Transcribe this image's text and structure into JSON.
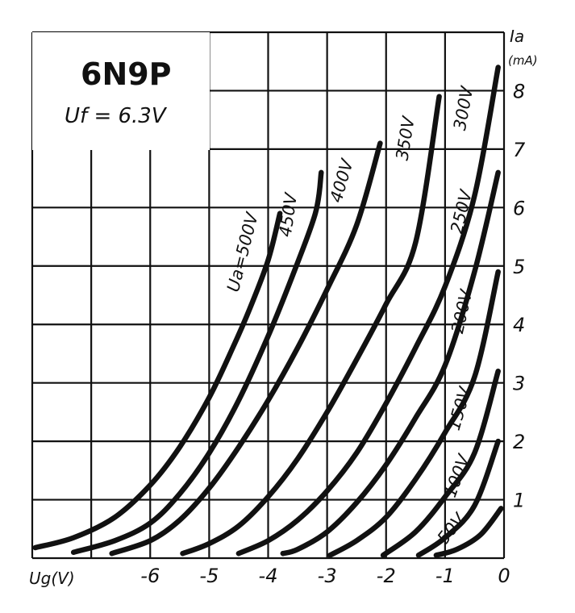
{
  "chart_data": {
    "type": "line",
    "title": "6N9P",
    "subtitle": "Uf = 6.3V",
    "xlabel": "Ug(V)",
    "ylabel": "Ia",
    "yunit": "(mA)",
    "xlim": [
      -8,
      0
    ],
    "ylim": [
      0,
      9
    ],
    "x_ticks": [
      -6,
      -5,
      -4,
      -3,
      -2,
      -1,
      0
    ],
    "y_ticks": [
      1,
      2,
      3,
      4,
      5,
      6,
      7,
      8
    ],
    "grid": true,
    "series": [
      {
        "name": "Ua=500V",
        "points": [
          [
            -7.95,
            0.18
          ],
          [
            -7.3,
            0.35
          ],
          [
            -6.6,
            0.7
          ],
          [
            -6,
            1.25
          ],
          [
            -5.5,
            1.9
          ],
          [
            -5,
            2.75
          ],
          [
            -4.6,
            3.6
          ],
          [
            -4.3,
            4.3
          ],
          [
            -4,
            5.1
          ],
          [
            -3.8,
            5.9
          ]
        ]
      },
      {
        "name": "450V",
        "points": [
          [
            -7.3,
            0.1
          ],
          [
            -6.6,
            0.3
          ],
          [
            -6,
            0.6
          ],
          [
            -5.5,
            1.1
          ],
          [
            -5,
            1.8
          ],
          [
            -4.5,
            2.7
          ],
          [
            -4,
            3.8
          ],
          [
            -3.6,
            4.8
          ],
          [
            -3.2,
            5.9
          ],
          [
            -3.1,
            6.6
          ]
        ]
      },
      {
        "name": "400V",
        "points": [
          [
            -6.65,
            0.08
          ],
          [
            -6,
            0.3
          ],
          [
            -5.5,
            0.65
          ],
          [
            -5,
            1.2
          ],
          [
            -4.5,
            1.9
          ],
          [
            -4,
            2.7
          ],
          [
            -3.5,
            3.6
          ],
          [
            -3,
            4.6
          ],
          [
            -2.5,
            5.7
          ],
          [
            -2.1,
            7.1
          ]
        ]
      },
      {
        "name": "350V",
        "points": [
          [
            -5.45,
            0.08
          ],
          [
            -5,
            0.25
          ],
          [
            -4.5,
            0.55
          ],
          [
            -4,
            1.05
          ],
          [
            -3.5,
            1.7
          ],
          [
            -3,
            2.5
          ],
          [
            -2.5,
            3.4
          ],
          [
            -2,
            4.35
          ],
          [
            -1.5,
            5.4
          ],
          [
            -1.1,
            7.9
          ]
        ]
      },
      {
        "name": "300V",
        "points": [
          [
            -4.5,
            0.08
          ],
          [
            -4,
            0.3
          ],
          [
            -3.5,
            0.65
          ],
          [
            -3,
            1.15
          ],
          [
            -2.5,
            1.8
          ],
          [
            -2,
            2.65
          ],
          [
            -1.5,
            3.6
          ],
          [
            -1,
            4.65
          ],
          [
            -0.5,
            6.2
          ],
          [
            -0.1,
            8.4
          ]
        ]
      },
      {
        "name": "250V",
        "points": [
          [
            -3.75,
            0.08
          ],
          [
            -3.5,
            0.15
          ],
          [
            -3,
            0.45
          ],
          [
            -2.5,
            0.95
          ],
          [
            -2,
            1.6
          ],
          [
            -1.5,
            2.4
          ],
          [
            -1,
            3.3
          ],
          [
            -0.5,
            4.9
          ],
          [
            -0.1,
            6.6
          ]
        ]
      },
      {
        "name": "200V",
        "points": [
          [
            -2.95,
            0.05
          ],
          [
            -2.5,
            0.3
          ],
          [
            -2,
            0.7
          ],
          [
            -1.5,
            1.35
          ],
          [
            -1,
            2.15
          ],
          [
            -0.5,
            3.1
          ],
          [
            -0.1,
            4.9
          ]
        ]
      },
      {
        "name": "150V",
        "points": [
          [
            -2.05,
            0.05
          ],
          [
            -1.5,
            0.45
          ],
          [
            -1,
            1.05
          ],
          [
            -0.5,
            1.8
          ],
          [
            -0.1,
            3.2
          ]
        ]
      },
      {
        "name": "100V",
        "points": [
          [
            -1.45,
            0.05
          ],
          [
            -1,
            0.35
          ],
          [
            -0.5,
            0.9
          ],
          [
            -0.1,
            2.0
          ]
        ]
      },
      {
        "name": "50V",
        "points": [
          [
            -1.15,
            0.05
          ],
          [
            -0.8,
            0.15
          ],
          [
            -0.4,
            0.4
          ],
          [
            -0.05,
            0.85
          ]
        ]
      }
    ]
  }
}
